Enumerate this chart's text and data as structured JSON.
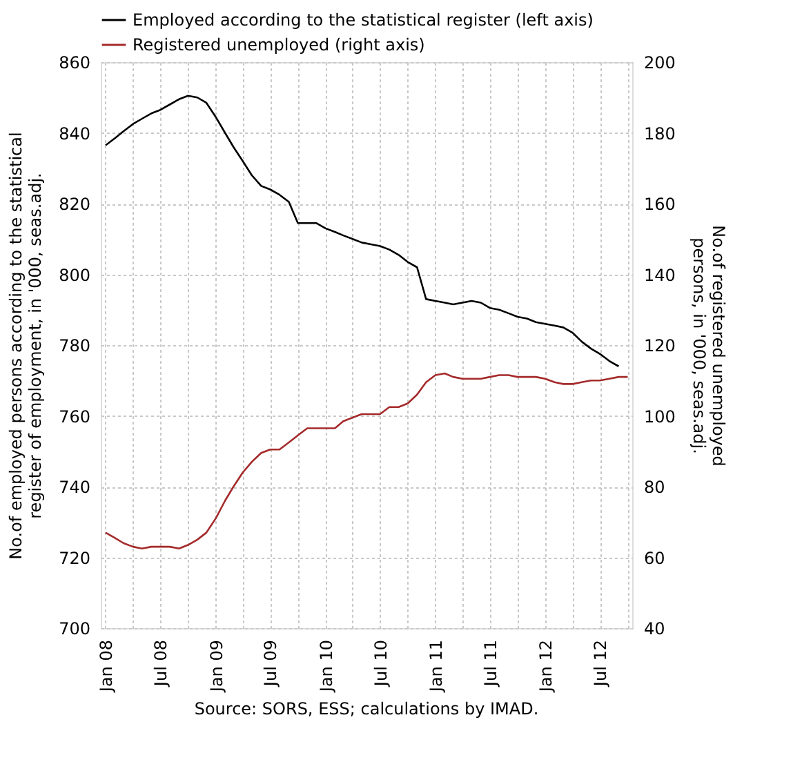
{
  "chart_data": {
    "type": "line",
    "ylabel": "No.of employed persons according to the statistical register of employment, in '000, seas.adj.",
    "y2label": "No.of registered unemployed persons, in '000, seas.adj.",
    "annotations": [
      "Source: SORS, ESS; calculations by IMAD."
    ],
    "x": [
      "2008-01",
      "2008-02",
      "2008-03",
      "2008-04",
      "2008-05",
      "2008-06",
      "2008-07",
      "2008-08",
      "2008-09",
      "2008-10",
      "2008-11",
      "2008-12",
      "2009-01",
      "2009-02",
      "2009-03",
      "2009-04",
      "2009-05",
      "2009-06",
      "2009-07",
      "2009-08",
      "2009-09",
      "2009-10",
      "2009-11",
      "2009-12",
      "2010-01",
      "2010-02",
      "2010-03",
      "2010-04",
      "2010-05",
      "2010-06",
      "2010-07",
      "2010-08",
      "2010-09",
      "2010-10",
      "2010-11",
      "2010-12",
      "2011-01",
      "2011-02",
      "2011-03",
      "2011-04",
      "2011-05",
      "2011-06",
      "2011-07",
      "2011-08",
      "2011-09",
      "2011-10",
      "2011-11",
      "2011-12",
      "2012-01",
      "2012-02",
      "2012-03",
      "2012-04",
      "2012-05",
      "2012-06",
      "2012-07",
      "2012-08",
      "2012-09",
      "2012-10"
    ],
    "series": [
      {
        "name": "Employed according to the statistical register (left axis)",
        "color": "#000000",
        "values": [
          836.5,
          838.5,
          840.5,
          842.5,
          844,
          845.5,
          846.5,
          848,
          849.5,
          850.5,
          850,
          848.5,
          844.5,
          840,
          836,
          832,
          828,
          825,
          824,
          822.5,
          820.5,
          814.5,
          814.5,
          814.5,
          813,
          812,
          811,
          810,
          809,
          808.5,
          808,
          807,
          805.5,
          803.5,
          802,
          793,
          792.5,
          792,
          791.5,
          792,
          792.5,
          792,
          790.5,
          790,
          789,
          788,
          787.5,
          786.5,
          786,
          785.5,
          785,
          783.5,
          781,
          779,
          777.5,
          775.5,
          774,
          null
        ]
      },
      {
        "name": "Registered unemployed (right axis)",
        "color": "#a52a2a",
        "axis": "y2",
        "values": [
          67,
          65.5,
          64,
          63,
          62.5,
          63,
          63,
          63,
          62.5,
          63.5,
          65,
          67,
          71,
          76,
          80,
          84,
          87,
          89.5,
          90.5,
          90.5,
          92.5,
          94.5,
          96.5,
          96.5,
          96.5,
          96.5,
          98.5,
          99.5,
          100.5,
          100.5,
          100.5,
          102.5,
          102.5,
          103.5,
          106,
          109.5,
          111.5,
          112,
          111,
          110.5,
          110.5,
          110.5,
          111,
          111.5,
          111.5,
          111,
          111,
          111,
          110.5,
          109.5,
          109,
          109,
          109.5,
          110,
          110,
          110.5,
          111,
          111
        ]
      }
    ],
    "xlim": [
      "2007-12-16",
      "2012-10-16"
    ],
    "xticks": [
      {
        "value": "2008-01",
        "label": "Jan 08"
      },
      {
        "value": "2008-04",
        "label": null
      },
      {
        "value": "2008-07",
        "label": "Jul 08"
      },
      {
        "value": "2008-10",
        "label": null
      },
      {
        "value": "2009-01",
        "label": "Jan 09"
      },
      {
        "value": "2009-04",
        "label": null
      },
      {
        "value": "2009-07",
        "label": "Jul 09"
      },
      {
        "value": "2009-10",
        "label": null
      },
      {
        "value": "2010-01",
        "label": "Jan 10"
      },
      {
        "value": "2010-04",
        "label": null
      },
      {
        "value": "2010-07",
        "label": "Jul 10"
      },
      {
        "value": "2010-10",
        "label": null
      },
      {
        "value": "2011-01",
        "label": "Jan 11"
      },
      {
        "value": "2011-04",
        "label": null
      },
      {
        "value": "2011-07",
        "label": "Jul 11"
      },
      {
        "value": "2011-10",
        "label": null
      },
      {
        "value": "2012-01",
        "label": "Jan 12"
      },
      {
        "value": "2012-04",
        "label": null
      },
      {
        "value": "2012-07",
        "label": "Jul 12"
      },
      {
        "value": "2012-10",
        "label": null
      }
    ],
    "ylim": [
      700,
      860
    ],
    "yticks": [
      700,
      720,
      740,
      760,
      780,
      800,
      820,
      840,
      860
    ],
    "y2lim": [
      40,
      200
    ],
    "y2ticks": [
      40,
      60,
      80,
      100,
      120,
      140,
      160,
      180,
      200
    ],
    "grid": true,
    "legend": "top left",
    "marker": "none",
    "line_style": "solid"
  }
}
